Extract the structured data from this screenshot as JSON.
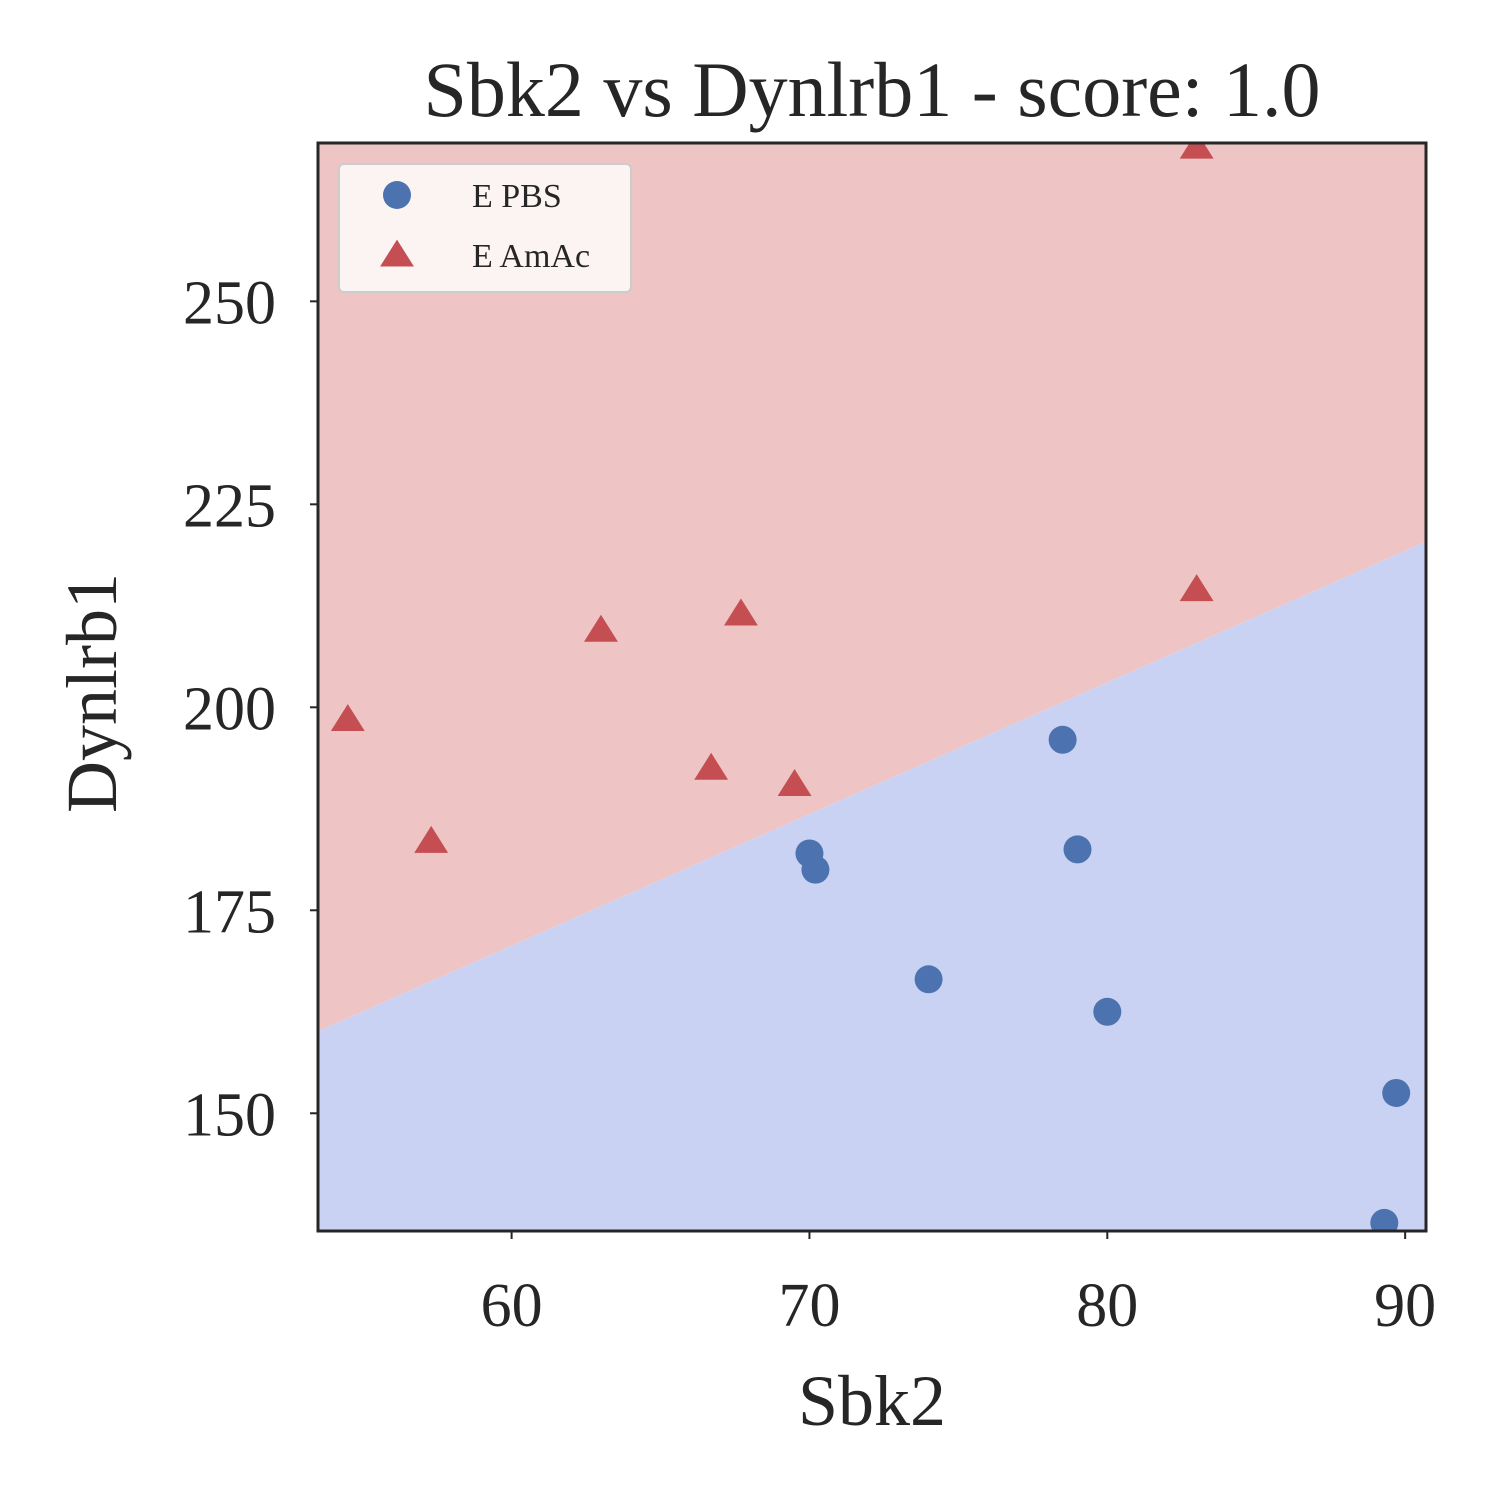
{
  "chart_data": {
    "type": "scatter",
    "title": "Sbk2 vs Dynlrb1 - score: 1.0",
    "xlabel": "Sbk2",
    "ylabel": "Dynlrb1",
    "xlim": [
      53.5,
      90.7
    ],
    "ylim": [
      135.5,
      269.5
    ],
    "xticks": [
      60,
      70,
      80,
      90
    ],
    "yticks": [
      150,
      175,
      200,
      225,
      250
    ],
    "grid": false,
    "legend_position": "top-left",
    "decision_boundary": {
      "points": [
        [
          53.5,
          160.1
        ],
        [
          90.7,
          220.4
        ]
      ],
      "upper_region_class": "E AmAc",
      "lower_region_class": "E PBS",
      "upper_color": "#eec5c4",
      "lower_color": "#c9d2f2"
    },
    "series": [
      {
        "name": "E PBS",
        "marker": "circle",
        "color": "#4c72b0",
        "points": [
          [
            78.5,
            196.0
          ],
          [
            79.0,
            182.5
          ],
          [
            70.0,
            182.0
          ],
          [
            70.2,
            180.0
          ],
          [
            74.0,
            166.5
          ],
          [
            80.0,
            162.5
          ],
          [
            89.7,
            152.5
          ],
          [
            89.3,
            136.5
          ]
        ]
      },
      {
        "name": "E AmAc",
        "marker": "triangle",
        "color": "#c44e52",
        "points": [
          [
            54.5,
            198.5
          ],
          [
            57.3,
            183.5
          ],
          [
            63.0,
            209.5
          ],
          [
            66.7,
            192.5
          ],
          [
            67.7,
            211.5
          ],
          [
            69.5,
            190.5
          ],
          [
            83.0,
            214.5
          ],
          [
            83.0,
            269.0
          ]
        ]
      }
    ]
  }
}
